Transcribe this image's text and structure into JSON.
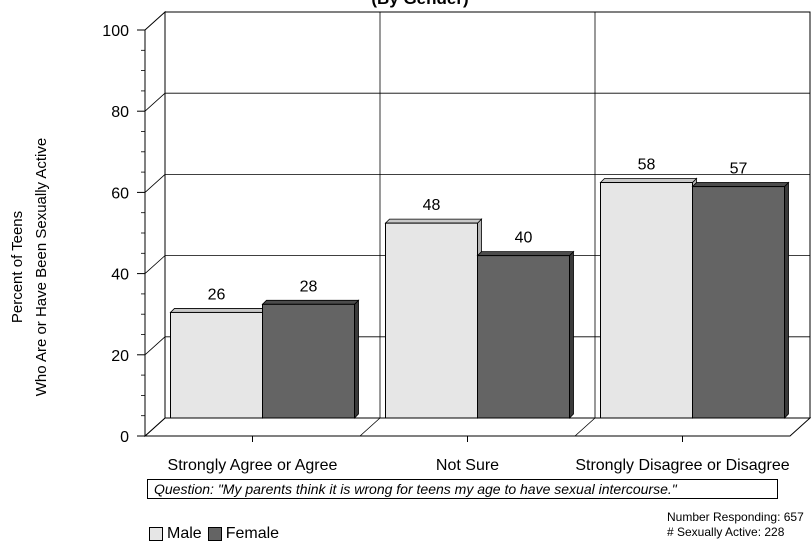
{
  "chart_data": {
    "type": "bar",
    "title": "(By Gender)",
    "categories": [
      "Strongly Agree or Agree",
      "Not Sure",
      "Strongly Disagree or Disagree"
    ],
    "series": [
      {
        "name": "Male",
        "values": [
          26,
          48,
          58
        ],
        "color": "#e6e6e6"
      },
      {
        "name": "Female",
        "values": [
          28,
          40,
          57
        ],
        "color": "#646464"
      }
    ],
    "ylabel_line1": "Percent of Teens",
    "ylabel_line2": "Who Are or Have Been Sexually Active",
    "ylim": [
      0,
      100
    ],
    "yticks": [
      0,
      20,
      40,
      60,
      80,
      100
    ],
    "grid": true,
    "legend_position": "bottom-left"
  },
  "question": "Question:  \"My parents think it is wrong for teens my age to have sexual intercourse.\"",
  "stats": {
    "responding": "Number Responding:  657",
    "sexually_active": "# Sexually Active:  228"
  },
  "legend": {
    "male": "Male",
    "female": "Female"
  }
}
